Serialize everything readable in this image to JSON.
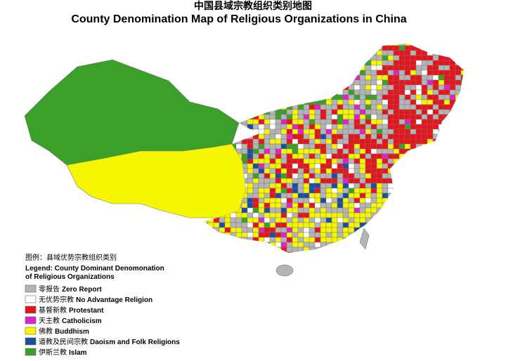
{
  "title_zh": "中国县域宗教组织类别地图",
  "title_en": "County Denomination Map of Religious Organizations in China",
  "legend": {
    "title_zh": "图例：县域优势宗教组织类别",
    "title_en_line1": "Legend: County Dominant Denomonation",
    "title_en_line2": "of Religious Organizations",
    "items": [
      {
        "zh": "零报告",
        "en": "Zero Report",
        "color": "#b4b4b4"
      },
      {
        "zh": "无优势宗教",
        "en": "No Advantage Religion",
        "color": "#ffffff"
      },
      {
        "zh": "基督新教",
        "en": "Protestant",
        "color": "#e8141c"
      },
      {
        "zh": "天主教",
        "en": "Catholicism",
        "color": "#e022c8"
      },
      {
        "zh": "佛教",
        "en": "Buddhism",
        "color": "#f6f600"
      },
      {
        "zh": "道教及民间宗教",
        "en": "Daoism and Folk Religions",
        "color": "#1a4fa0"
      },
      {
        "zh": "伊斯兰教",
        "en": "Islam",
        "color": "#3aa02a"
      }
    ]
  }
}
